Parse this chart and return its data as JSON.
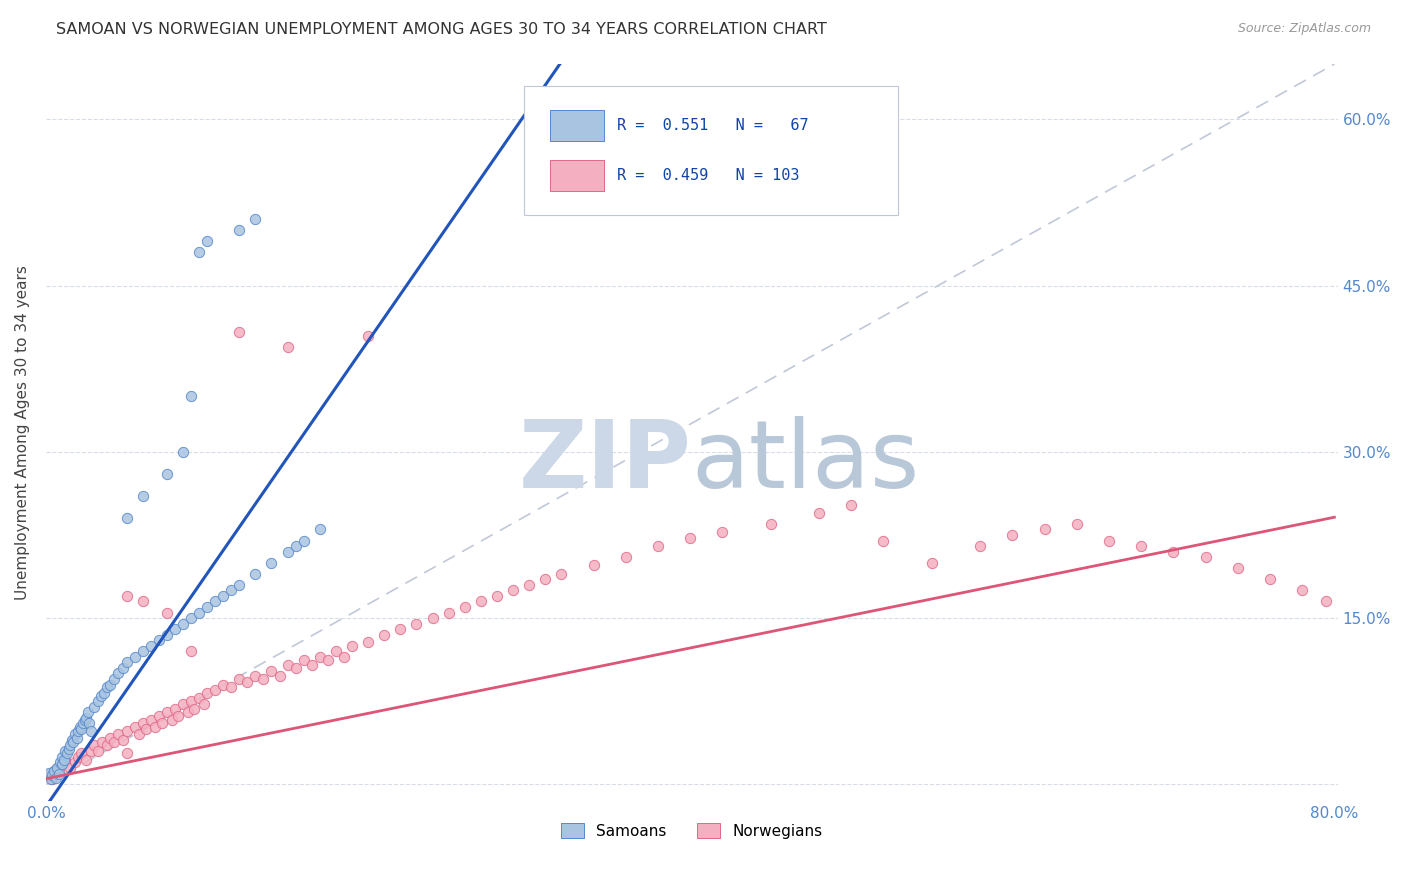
{
  "title": "SAMOAN VS NORWEGIAN UNEMPLOYMENT AMONG AGES 30 TO 34 YEARS CORRELATION CHART",
  "source": "Source: ZipAtlas.com",
  "ylabel_label": "Unemployment Among Ages 30 to 34 years",
  "xmin": 0.0,
  "xmax": 0.8,
  "ymin": -0.015,
  "ymax": 0.65,
  "color_samoan_fill": "#a8c4e0",
  "color_samoan_edge": "#5588cc",
  "color_norwegian_fill": "#f4b0c0",
  "color_norwegian_edge": "#e06888",
  "color_samoan_line": "#2255bb",
  "color_norwegian_line": "#dd5577",
  "color_diagonal": "#c0c8d8",
  "watermark_zip": "#ccd8e8",
  "watermark_atlas": "#b8c8d8",
  "grid_color": "#d8dce8",
  "tick_color": "#5588cc",
  "title_color": "#333333",
  "source_color": "#999999",
  "legend_text_color": "#1144aa",
  "sam_slope": 2.1,
  "sam_intercept": -0.02,
  "nor_slope": 0.295,
  "nor_intercept": 0.005,
  "diag_slope": 0.8125,
  "diag_intercept": 0.0,
  "samoans_x": [
    0.002,
    0.003,
    0.004,
    0.005,
    0.006,
    0.007,
    0.008,
    0.009,
    0.01,
    0.01,
    0.011,
    0.012,
    0.013,
    0.014,
    0.015,
    0.016,
    0.017,
    0.018,
    0.019,
    0.02,
    0.021,
    0.022,
    0.023,
    0.024,
    0.025,
    0.026,
    0.027,
    0.028,
    0.03,
    0.032,
    0.034,
    0.036,
    0.038,
    0.04,
    0.042,
    0.045,
    0.048,
    0.05,
    0.055,
    0.06,
    0.065,
    0.07,
    0.075,
    0.08,
    0.085,
    0.09,
    0.095,
    0.1,
    0.105,
    0.11,
    0.115,
    0.12,
    0.13,
    0.14,
    0.15,
    0.155,
    0.16,
    0.17,
    0.05,
    0.06,
    0.075,
    0.085,
    0.09,
    0.095,
    0.1,
    0.12,
    0.13
  ],
  "samoans_y": [
    0.01,
    0.005,
    0.008,
    0.012,
    0.006,
    0.015,
    0.009,
    0.02,
    0.025,
    0.018,
    0.022,
    0.03,
    0.028,
    0.032,
    0.035,
    0.04,
    0.038,
    0.045,
    0.042,
    0.048,
    0.052,
    0.05,
    0.055,
    0.058,
    0.06,
    0.065,
    0.055,
    0.048,
    0.07,
    0.075,
    0.08,
    0.082,
    0.088,
    0.09,
    0.095,
    0.1,
    0.105,
    0.11,
    0.115,
    0.12,
    0.125,
    0.13,
    0.135,
    0.14,
    0.145,
    0.15,
    0.155,
    0.16,
    0.165,
    0.17,
    0.175,
    0.18,
    0.19,
    0.2,
    0.21,
    0.215,
    0.22,
    0.23,
    0.24,
    0.26,
    0.28,
    0.3,
    0.35,
    0.48,
    0.49,
    0.5,
    0.51
  ],
  "norwegians_x": [
    0.002,
    0.004,
    0.005,
    0.006,
    0.007,
    0.008,
    0.01,
    0.012,
    0.015,
    0.018,
    0.02,
    0.022,
    0.025,
    0.028,
    0.03,
    0.032,
    0.035,
    0.038,
    0.04,
    0.042,
    0.045,
    0.048,
    0.05,
    0.05,
    0.055,
    0.058,
    0.06,
    0.062,
    0.065,
    0.068,
    0.07,
    0.072,
    0.075,
    0.078,
    0.08,
    0.082,
    0.085,
    0.088,
    0.09,
    0.092,
    0.095,
    0.098,
    0.1,
    0.105,
    0.11,
    0.115,
    0.12,
    0.125,
    0.13,
    0.135,
    0.14,
    0.145,
    0.15,
    0.155,
    0.16,
    0.165,
    0.17,
    0.175,
    0.18,
    0.185,
    0.19,
    0.2,
    0.21,
    0.22,
    0.23,
    0.24,
    0.25,
    0.26,
    0.27,
    0.28,
    0.29,
    0.3,
    0.31,
    0.32,
    0.34,
    0.36,
    0.38,
    0.4,
    0.42,
    0.45,
    0.48,
    0.5,
    0.52,
    0.55,
    0.58,
    0.6,
    0.62,
    0.64,
    0.66,
    0.68,
    0.7,
    0.72,
    0.74,
    0.76,
    0.78,
    0.795,
    0.05,
    0.06,
    0.075,
    0.09,
    0.12,
    0.15,
    0.2
  ],
  "norwegians_y": [
    0.008,
    0.005,
    0.012,
    0.01,
    0.015,
    0.012,
    0.018,
    0.022,
    0.015,
    0.02,
    0.025,
    0.028,
    0.022,
    0.03,
    0.035,
    0.03,
    0.038,
    0.035,
    0.042,
    0.038,
    0.045,
    0.04,
    0.048,
    0.028,
    0.052,
    0.045,
    0.055,
    0.05,
    0.058,
    0.052,
    0.062,
    0.055,
    0.065,
    0.058,
    0.068,
    0.062,
    0.072,
    0.065,
    0.075,
    0.068,
    0.078,
    0.072,
    0.082,
    0.085,
    0.09,
    0.088,
    0.095,
    0.092,
    0.098,
    0.095,
    0.102,
    0.098,
    0.108,
    0.105,
    0.112,
    0.108,
    0.115,
    0.112,
    0.12,
    0.115,
    0.125,
    0.128,
    0.135,
    0.14,
    0.145,
    0.15,
    0.155,
    0.16,
    0.165,
    0.17,
    0.175,
    0.18,
    0.185,
    0.19,
    0.198,
    0.205,
    0.215,
    0.222,
    0.228,
    0.235,
    0.245,
    0.252,
    0.22,
    0.2,
    0.215,
    0.225,
    0.23,
    0.235,
    0.22,
    0.215,
    0.21,
    0.205,
    0.195,
    0.185,
    0.175,
    0.165,
    0.17,
    0.165,
    0.155,
    0.12,
    0.408,
    0.395,
    0.405
  ]
}
